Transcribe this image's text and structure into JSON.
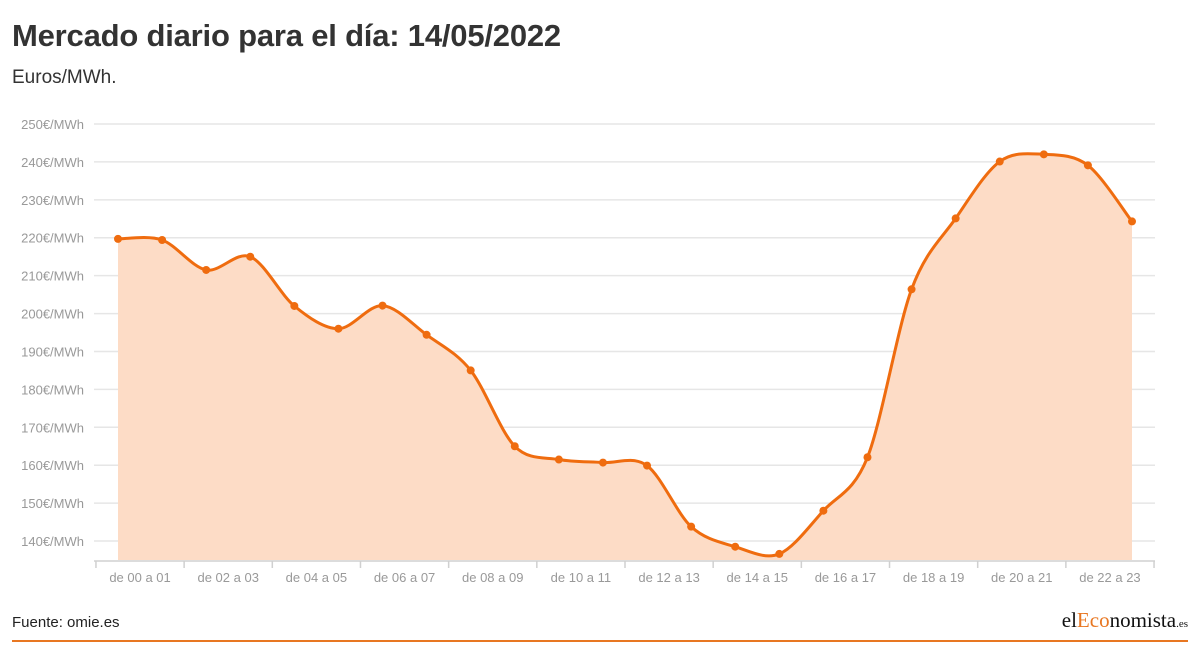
{
  "header": {
    "title": "Mercado diario para el día: 14/05/2022",
    "subtitle": "Euros/MWh."
  },
  "footer": {
    "source": "Fuente: omie.es",
    "brand_pre": "el",
    "brand_accent": "Eco",
    "brand_post": "nomista",
    "brand_suffix": ".es"
  },
  "colors": {
    "line": "#ef6c0f",
    "fill": "#fddcc6",
    "grid": "#e6e6e6",
    "tick_text": "#999999",
    "brand_accent": "#e87722"
  },
  "chart_data": {
    "type": "area",
    "ylabel_unit": "€/MWh",
    "ylim": [
      135,
      250
    ],
    "yticks": [
      140,
      150,
      160,
      170,
      180,
      190,
      200,
      210,
      220,
      230,
      240,
      250
    ],
    "ytick_labels": [
      "140€/MWh",
      "150€/MWh",
      "160€/MWh",
      "170€/MWh",
      "180€/MWh",
      "190€/MWh",
      "200€/MWh",
      "210€/MWh",
      "220€/MWh",
      "230€/MWh",
      "240€/MWh",
      "250€/MWh"
    ],
    "xtick_labels": [
      "de 00 a 01",
      "de 02 a 03",
      "de 04 a 05",
      "de 06 a 07",
      "de 08 a 09",
      "de 10 a 11",
      "de 12 a 13",
      "de 14 a 15",
      "de 16 a 17",
      "de 18 a 19",
      "de 20 a 21",
      "de 22 a 23"
    ],
    "grid": true,
    "series": [
      {
        "values": [
          219.7,
          219.4,
          211.5,
          215.0,
          202.0,
          196.0,
          202.1,
          194.4,
          185.0,
          165.0,
          161.5,
          160.7,
          159.9,
          143.8,
          138.5,
          136.6,
          148.0,
          162.1,
          206.4,
          225.1,
          240.1,
          242.0,
          239.1,
          224.3
        ]
      }
    ]
  }
}
